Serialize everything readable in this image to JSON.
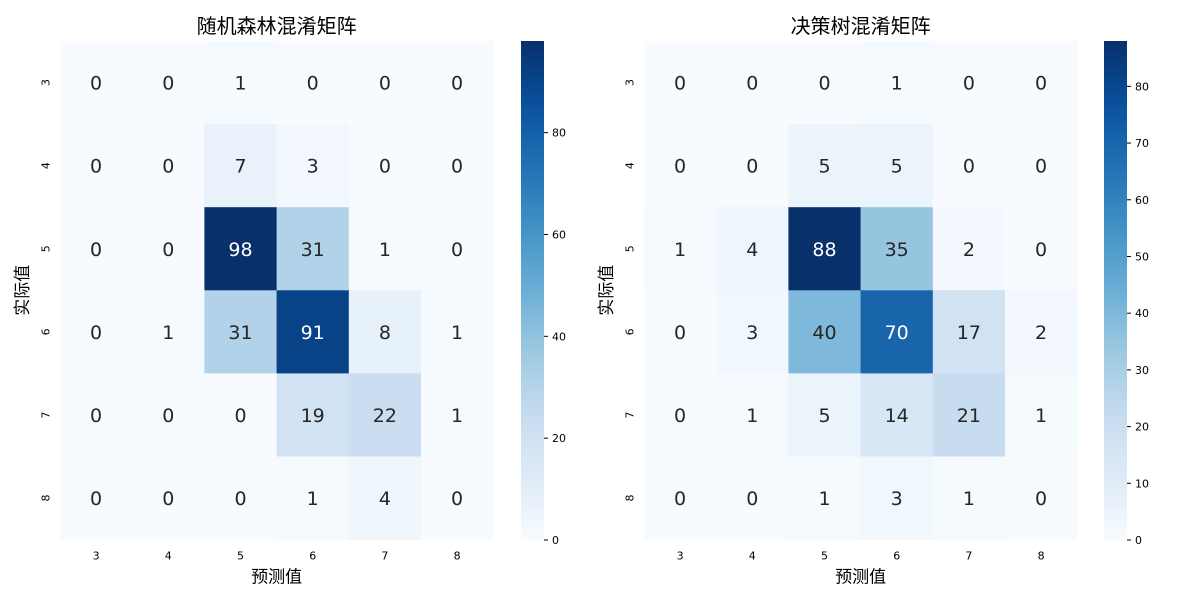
{
  "chart_data": [
    {
      "type": "heatmap",
      "title": "随机森林混淆矩阵",
      "xlabel": "预测值",
      "ylabel": "实际值",
      "x_categories": [
        "3",
        "4",
        "5",
        "6",
        "7",
        "8"
      ],
      "y_categories": [
        "3",
        "4",
        "5",
        "6",
        "7",
        "8"
      ],
      "values": [
        [
          0,
          0,
          1,
          0,
          0,
          0
        ],
        [
          0,
          0,
          7,
          3,
          0,
          0
        ],
        [
          0,
          0,
          98,
          31,
          1,
          0
        ],
        [
          0,
          1,
          31,
          91,
          8,
          1
        ],
        [
          0,
          0,
          0,
          19,
          22,
          1
        ],
        [
          0,
          0,
          0,
          1,
          4,
          0
        ]
      ],
      "colormap": "Blues",
      "colorbar": {
        "min": 0,
        "max": 98,
        "ticks": [
          0,
          20,
          40,
          60,
          80
        ]
      }
    },
    {
      "type": "heatmap",
      "title": "决策树混淆矩阵",
      "xlabel": "预测值",
      "ylabel": "实际值",
      "x_categories": [
        "3",
        "4",
        "5",
        "6",
        "7",
        "8"
      ],
      "y_categories": [
        "3",
        "4",
        "5",
        "6",
        "7",
        "8"
      ],
      "values": [
        [
          0,
          0,
          0,
          1,
          0,
          0
        ],
        [
          0,
          0,
          5,
          5,
          0,
          0
        ],
        [
          1,
          4,
          88,
          35,
          2,
          0
        ],
        [
          0,
          3,
          40,
          70,
          17,
          2
        ],
        [
          0,
          1,
          5,
          14,
          21,
          1
        ],
        [
          0,
          0,
          1,
          3,
          1,
          0
        ]
      ],
      "colormap": "Blues",
      "colorbar": {
        "min": 0,
        "max": 88,
        "ticks": [
          0,
          10,
          20,
          30,
          40,
          50,
          60,
          70,
          80
        ]
      }
    }
  ]
}
